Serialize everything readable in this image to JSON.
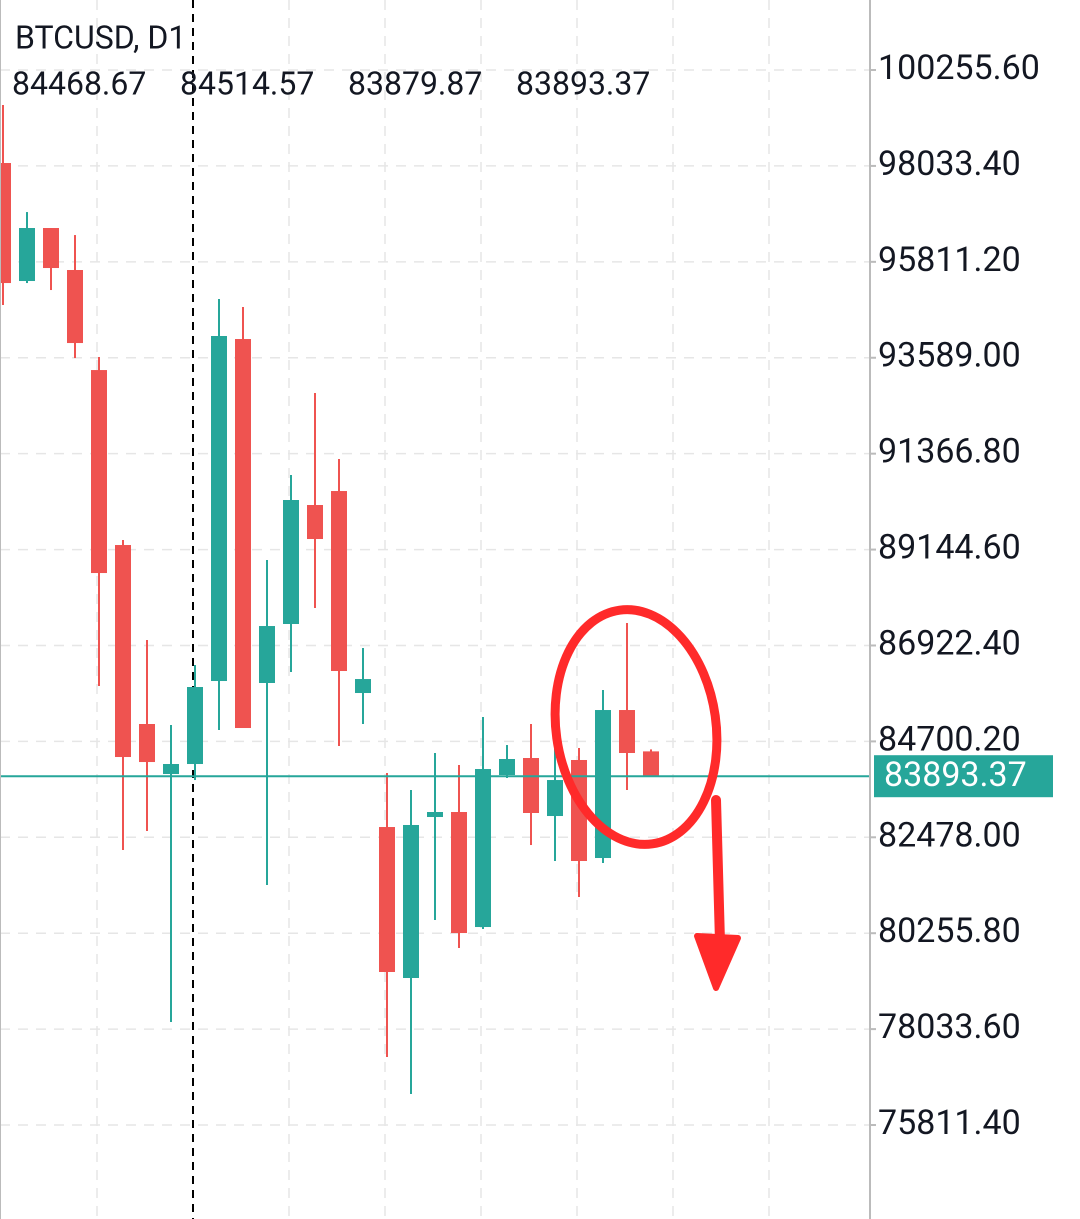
{
  "chart_data": {
    "type": "candlestick",
    "title": "BTCUSD, D1",
    "open": [
      98101,
      95367,
      96595,
      95622,
      93304,
      89250,
      85103,
      83944,
      84176,
      86099,
      94023,
      86053,
      87420,
      90177,
      90501,
      85821,
      82716,
      79218,
      82948,
      83064,
      80399,
      83921,
      84315,
      82971,
      84269,
      81998,
      85427,
      84468.67
    ],
    "high": [
      99445,
      96965,
      96595,
      96432,
      93606,
      89366,
      87049,
      85080,
      86470,
      94950,
      94765,
      88903,
      90872,
      92772,
      91243,
      86864,
      83967,
      83574,
      84431,
      84153,
      85265,
      84616,
      85103,
      84547,
      84547,
      85891,
      87443,
      84514.57
    ],
    "low": [
      94811,
      95320,
      95158,
      93582,
      85983,
      82183,
      82624,
      78198,
      83805,
      84964,
      85010,
      81372,
      86308,
      87791,
      84593,
      85103,
      77387,
      76530,
      80561,
      79913,
      80353,
      83852,
      82299,
      81929,
      81094,
      81882,
      83574,
      83879.87
    ],
    "close": [
      95320,
      96595,
      95668,
      93930,
      88601,
      84338,
      84222,
      84176,
      85960,
      94093,
      85010,
      87373,
      90293,
      89389,
      86331,
      86145,
      79357,
      82763,
      83064,
      80260,
      84060,
      84292,
      83041,
      83805,
      81929,
      85427,
      84431,
      83893.37
    ],
    "up_color": "#26a69a",
    "down_color": "#ef5350",
    "ylim": [
      73634,
      101878
    ],
    "yticks": [
      {
        "value": 100255.6,
        "label": "100255.60"
      },
      {
        "value": 98033.4,
        "label": "98033.40"
      },
      {
        "value": 95811.2,
        "label": "95811.20"
      },
      {
        "value": 93589,
        "label": "93589.00"
      },
      {
        "value": 91366.8,
        "label": "91366.80"
      },
      {
        "value": 89144.6,
        "label": "89144.60"
      },
      {
        "value": 86922.4,
        "label": "86922.40"
      },
      {
        "value": 84700.2,
        "label": "84700.20"
      },
      {
        "value": 82478,
        "label": "82478.00"
      },
      {
        "value": 80255.8,
        "label": "80255.80"
      },
      {
        "value": 78033.6,
        "label": "78033.60"
      },
      {
        "value": 75811.4,
        "label": "75811.40"
      }
    ],
    "grid": true
  }
}
